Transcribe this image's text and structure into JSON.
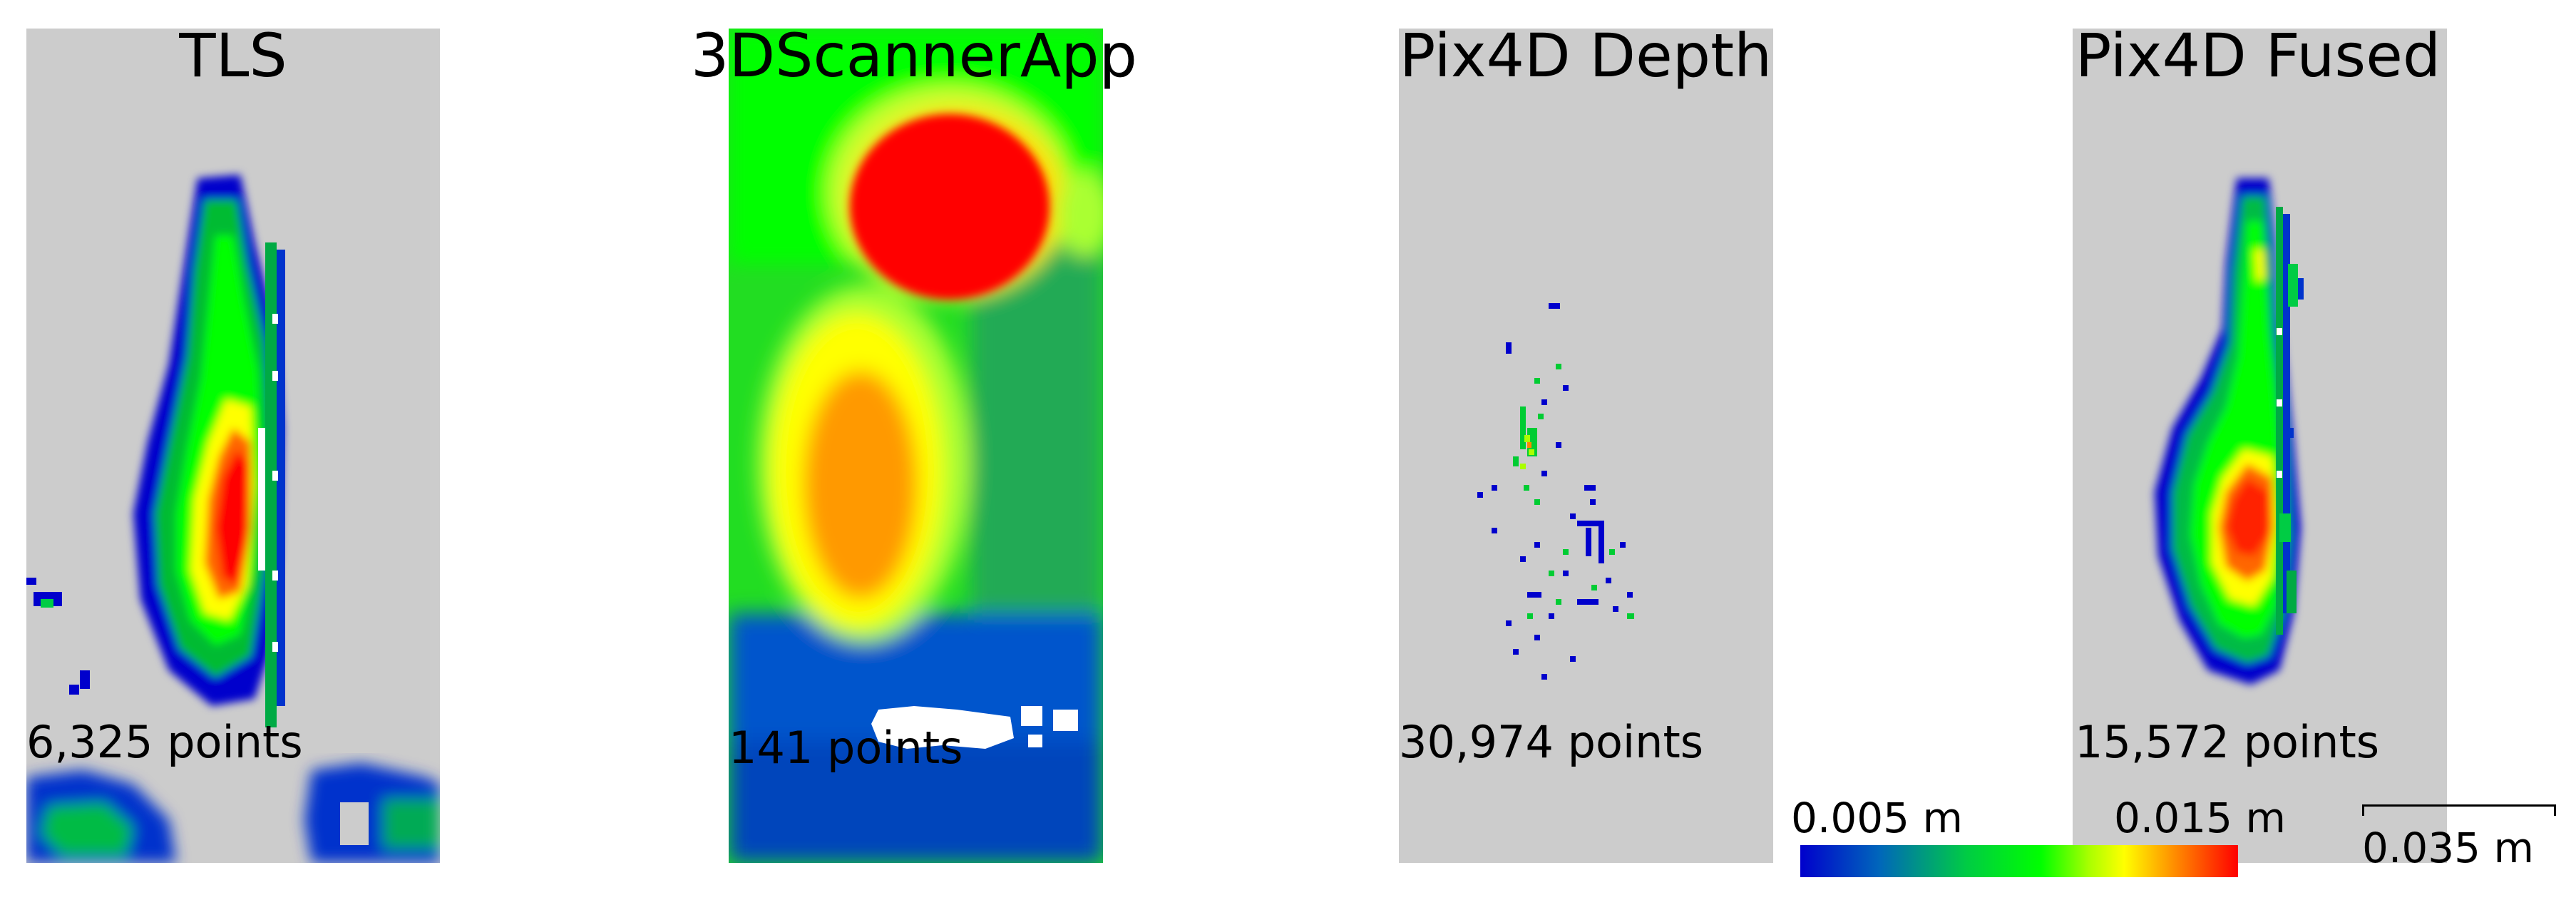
{
  "panels": [
    {
      "title": "TLS",
      "count": "6,325 points"
    },
    {
      "title": "3DScannerApp",
      "count": "141 points"
    },
    {
      "title": "Pix4D Depth",
      "count": "30,974 points"
    },
    {
      "title": "Pix4D Fused",
      "count": "15,572 points"
    }
  ],
  "colorbar": {
    "min_label": "0.005 m",
    "max_label": "0.015 m",
    "colors": [
      "#0000cc",
      "#00cc44",
      "#00ff00",
      "#ffff00",
      "#ff8800",
      "#ff0000"
    ]
  },
  "scalebar": {
    "label": "0.035 m"
  }
}
